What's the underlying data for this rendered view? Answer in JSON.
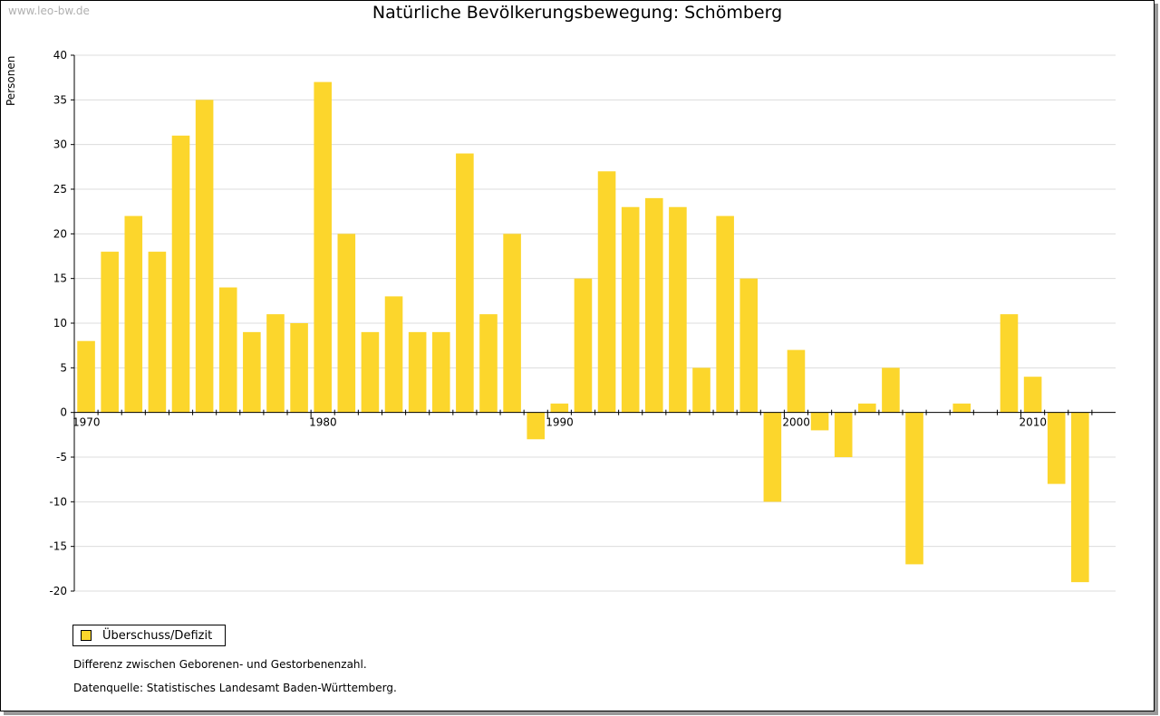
{
  "watermark": "www.leo-bw.de",
  "title": "Natürliche Bevölkerungsbewegung: Schömberg",
  "legend_label": "Überschuss/Defizit",
  "note": "Differenz zwischen Geborenen- und Gestorbenenzahl.",
  "source": "Datenquelle: Statistisches Landesamt Baden-Württemberg.",
  "colors": {
    "bar": "#fcd62c",
    "grid": "#dcdcdc",
    "axis": "#000000"
  },
  "chart_data": {
    "type": "bar",
    "title": "Natürliche Bevölkerungsbewegung: Schömberg",
    "xlabel": "",
    "ylabel": "Personen",
    "ylim": [
      -20,
      40
    ],
    "yticks": [
      40,
      35,
      30,
      25,
      20,
      15,
      10,
      5,
      0,
      -5,
      -10,
      -15,
      -20
    ],
    "xtick_labels": [
      "1970",
      "1980",
      "1990",
      "2000",
      "2010"
    ],
    "categories": [
      1970,
      1971,
      1972,
      1973,
      1974,
      1975,
      1976,
      1977,
      1978,
      1979,
      1980,
      1981,
      1982,
      1983,
      1984,
      1985,
      1986,
      1987,
      1988,
      1989,
      1990,
      1991,
      1992,
      1993,
      1994,
      1995,
      1996,
      1997,
      1998,
      1999,
      2000,
      2001,
      2002,
      2003,
      2004,
      2005,
      2006,
      2007,
      2008,
      2009,
      2010,
      2011,
      2012,
      2013
    ],
    "series": [
      {
        "name": "Überschuss/Defizit",
        "values": [
          8,
          18,
          22,
          18,
          31,
          35,
          14,
          9,
          11,
          10,
          37,
          20,
          9,
          13,
          9,
          9,
          29,
          11,
          20,
          -3,
          1,
          15,
          27,
          23,
          24,
          23,
          5,
          22,
          15,
          -10,
          7,
          -2,
          -5,
          1,
          5,
          -17,
          0,
          1,
          0,
          11,
          4,
          -8,
          -19,
          0
        ]
      }
    ],
    "grid": true,
    "legend": "bottom-left"
  }
}
